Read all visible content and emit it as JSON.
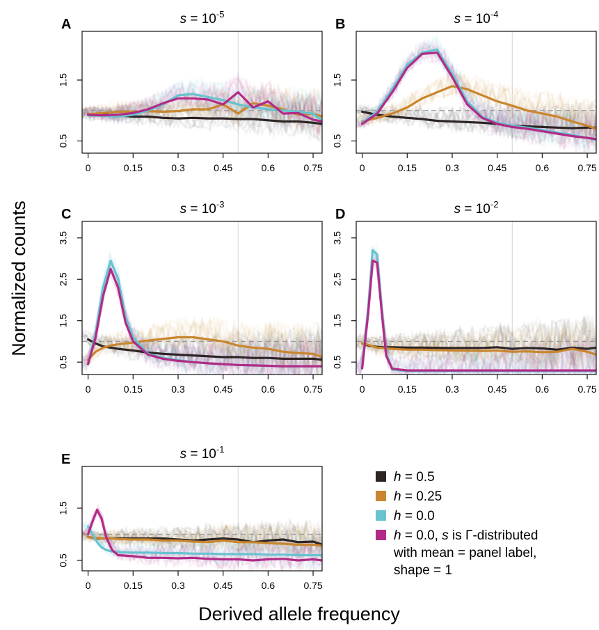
{
  "ylabel": "Normalized counts",
  "xlabel": "Derived allele frequency",
  "colors": {
    "h0.5": "#2d2424",
    "h0.25": "#c9862e",
    "h0.0": "#67c3cf",
    "gamma": "#b12b87"
  },
  "legend": {
    "items": [
      {
        "key": "h0.5",
        "lines": [
          "h = 0.5"
        ]
      },
      {
        "key": "h0.25",
        "lines": [
          "h = 0.25"
        ]
      },
      {
        "key": "h0.0",
        "lines": [
          "h = 0.0"
        ]
      },
      {
        "key": "gamma",
        "lines": [
          "h = 0.0, s is Γ-distributed",
          "with mean = panel label,",
          "shape = 1"
        ]
      }
    ]
  },
  "chart_data": [
    {
      "panel": "A",
      "type": "line",
      "title": "s = 10^-5",
      "xticks": [
        0,
        0.15,
        0.3,
        0.45,
        0.6,
        0.75
      ],
      "xtick_labels": [
        "0",
        "0.15",
        "0.3",
        "0.45",
        "0.6",
        "0.75"
      ],
      "yticks": [
        0.5,
        1.5
      ],
      "ytick_labels": [
        "0.5",
        "1.5"
      ],
      "xlim": [
        -0.02,
        0.78
      ],
      "ylim": [
        0.3,
        2.3
      ],
      "reference_y": 1.0,
      "x": [
        0,
        0.05,
        0.1,
        0.15,
        0.2,
        0.25,
        0.3,
        0.35,
        0.4,
        0.45,
        0.5,
        0.55,
        0.6,
        0.65,
        0.7,
        0.75,
        0.78
      ],
      "series": [
        {
          "key": "h0.5",
          "name": "h = 0.5",
          "values": [
            0.93,
            0.93,
            0.92,
            0.9,
            0.9,
            0.88,
            0.87,
            0.88,
            0.87,
            0.87,
            0.86,
            0.86,
            0.84,
            0.82,
            0.82,
            0.8,
            0.78
          ]
        },
        {
          "key": "h0.25",
          "name": "h = 0.25",
          "values": [
            0.94,
            0.96,
            0.98,
            0.98,
            0.99,
            0.98,
            0.99,
            1.02,
            1.02,
            1.1,
            0.95,
            1.12,
            1.08,
            1.02,
            0.93,
            0.95,
            0.9
          ]
        },
        {
          "key": "h0.0",
          "name": "h = 0.0",
          "values": [
            0.92,
            0.91,
            0.9,
            0.93,
            1.0,
            1.1,
            1.25,
            1.27,
            1.22,
            1.17,
            1.1,
            1.05,
            1.02,
            1.0,
            0.98,
            0.95,
            0.83
          ]
        },
        {
          "key": "gamma",
          "name": "h = 0.0, s is Γ-distributed",
          "values": [
            0.93,
            0.92,
            0.93,
            0.96,
            1.02,
            1.12,
            1.2,
            1.2,
            1.18,
            1.1,
            1.3,
            1.05,
            1.15,
            0.95,
            0.96,
            0.85,
            0.82
          ]
        }
      ]
    },
    {
      "panel": "B",
      "type": "line",
      "title": "s = 10^-4",
      "xticks": [
        0,
        0.15,
        0.3,
        0.45,
        0.6,
        0.75
      ],
      "xtick_labels": [
        "0",
        "0.15",
        "0.3",
        "0.45",
        "0.6",
        "0.75"
      ],
      "yticks": [
        0.5,
        1.5
      ],
      "ytick_labels": [
        "0.5",
        "1.5"
      ],
      "xlim": [
        -0.02,
        0.78
      ],
      "ylim": [
        0.3,
        2.3
      ],
      "reference_y": 1.0,
      "x": [
        0,
        0.05,
        0.1,
        0.15,
        0.2,
        0.25,
        0.3,
        0.35,
        0.4,
        0.45,
        0.5,
        0.55,
        0.6,
        0.65,
        0.7,
        0.75,
        0.78
      ],
      "series": [
        {
          "key": "h0.5",
          "name": "h = 0.5",
          "values": [
            0.98,
            0.93,
            0.9,
            0.88,
            0.86,
            0.83,
            0.82,
            0.81,
            0.8,
            0.78,
            0.75,
            0.74,
            0.73,
            0.72,
            0.71,
            0.72,
            0.72
          ]
        },
        {
          "key": "h0.25",
          "name": "h = 0.25",
          "values": [
            0.82,
            0.88,
            0.95,
            1.05,
            1.2,
            1.3,
            1.4,
            1.35,
            1.25,
            1.15,
            1.08,
            1.0,
            0.95,
            0.9,
            0.82,
            0.75,
            0.7
          ]
        },
        {
          "key": "h0.0",
          "name": "h = 0.0",
          "values": [
            0.8,
            0.98,
            1.35,
            1.75,
            1.95,
            2.0,
            1.6,
            1.15,
            0.9,
            0.8,
            0.75,
            0.72,
            0.68,
            0.64,
            0.6,
            0.55,
            0.52
          ]
        },
        {
          "key": "gamma",
          "name": "h = 0.0, s is Γ-distributed",
          "values": [
            0.78,
            0.95,
            1.3,
            1.7,
            1.93,
            1.95,
            1.55,
            1.1,
            0.88,
            0.78,
            0.73,
            0.7,
            0.66,
            0.62,
            0.58,
            0.55,
            0.53
          ]
        }
      ]
    },
    {
      "panel": "C",
      "type": "line",
      "title": "s = 10^-3",
      "xticks": [
        0,
        0.15,
        0.3,
        0.45,
        0.6,
        0.75
      ],
      "xtick_labels": [
        "0",
        "0.15",
        "0.3",
        "0.45",
        "0.6",
        "0.75"
      ],
      "yticks": [
        0.5,
        1.5,
        2.5,
        3.5
      ],
      "ytick_labels": [
        "0.5",
        "1.5",
        "2.5",
        "3.5"
      ],
      "xlim": [
        -0.02,
        0.78
      ],
      "ylim": [
        0.2,
        3.9
      ],
      "reference_y": 1.0,
      "x": [
        0,
        0.025,
        0.05,
        0.075,
        0.1,
        0.125,
        0.15,
        0.2,
        0.25,
        0.3,
        0.35,
        0.4,
        0.45,
        0.5,
        0.55,
        0.6,
        0.65,
        0.7,
        0.75,
        0.78
      ],
      "series": [
        {
          "key": "h0.5",
          "name": "h = 0.5",
          "values": [
            1.05,
            0.95,
            0.88,
            0.85,
            0.82,
            0.8,
            0.78,
            0.73,
            0.7,
            0.68,
            0.66,
            0.64,
            0.62,
            0.62,
            0.6,
            0.6,
            0.58,
            0.58,
            0.58,
            0.56
          ]
        },
        {
          "key": "h0.25",
          "name": "h = 0.25",
          "values": [
            0.55,
            0.75,
            0.85,
            0.9,
            0.93,
            0.95,
            0.97,
            1.02,
            1.06,
            1.1,
            1.1,
            1.05,
            1.0,
            0.9,
            0.85,
            0.82,
            0.75,
            0.72,
            0.7,
            0.62
          ]
        },
        {
          "key": "h0.0",
          "name": "h = 0.0",
          "values": [
            0.45,
            1.2,
            2.3,
            2.95,
            2.5,
            1.6,
            1.1,
            0.7,
            0.6,
            0.55,
            0.5,
            0.47,
            0.45,
            0.43,
            0.42,
            0.41,
            0.4,
            0.4,
            0.4,
            0.4
          ]
        },
        {
          "key": "gamma",
          "name": "h = 0.0, s is Γ-distributed",
          "values": [
            0.45,
            1.1,
            2.1,
            2.75,
            2.3,
            1.45,
            1.0,
            0.68,
            0.58,
            0.53,
            0.5,
            0.47,
            0.45,
            0.43,
            0.42,
            0.41,
            0.4,
            0.4,
            0.4,
            0.4
          ]
        }
      ]
    },
    {
      "panel": "D",
      "type": "line",
      "title": "s = 10^-2",
      "xticks": [
        0,
        0.15,
        0.3,
        0.45,
        0.6,
        0.75
      ],
      "xtick_labels": [
        "0",
        "0.15",
        "0.3",
        "0.45",
        "0.6",
        "0.75"
      ],
      "yticks": [
        0.5,
        1.5,
        2.5,
        3.5
      ],
      "ytick_labels": [
        "0.5",
        "1.5",
        "2.5",
        "3.5"
      ],
      "xlim": [
        -0.02,
        0.78
      ],
      "ylim": [
        0.2,
        3.9
      ],
      "reference_y": 1.0,
      "x": [
        0,
        0.02,
        0.035,
        0.05,
        0.065,
        0.08,
        0.1,
        0.15,
        0.2,
        0.3,
        0.4,
        0.45,
        0.5,
        0.55,
        0.6,
        0.65,
        0.7,
        0.75,
        0.78
      ],
      "series": [
        {
          "key": "h0.5",
          "name": "h = 0.5",
          "values": [
            0.95,
            0.9,
            0.88,
            0.87,
            0.86,
            0.86,
            0.86,
            0.85,
            0.85,
            0.84,
            0.84,
            0.86,
            0.82,
            0.84,
            0.83,
            0.8,
            0.85,
            0.82,
            0.85
          ]
        },
        {
          "key": "h0.25",
          "name": "h = 0.25",
          "values": [
            0.95,
            0.92,
            0.88,
            0.85,
            0.84,
            0.83,
            0.82,
            0.8,
            0.8,
            0.78,
            0.77,
            0.78,
            0.75,
            0.76,
            0.74,
            0.75,
            0.82,
            0.75,
            0.68
          ]
        },
        {
          "key": "h0.0",
          "name": "h = 0.0",
          "values": [
            0.35,
            1.8,
            3.2,
            3.1,
            1.8,
            0.7,
            0.32,
            0.28,
            0.28,
            0.28,
            0.28,
            0.28,
            0.28,
            0.28,
            0.28,
            0.28,
            0.28,
            0.28,
            0.28
          ]
        },
        {
          "key": "gamma",
          "name": "h = 0.0, s is Γ-distributed",
          "values": [
            0.35,
            1.7,
            2.95,
            2.9,
            1.7,
            0.65,
            0.34,
            0.3,
            0.3,
            0.3,
            0.3,
            0.3,
            0.3,
            0.3,
            0.3,
            0.3,
            0.3,
            0.3,
            0.3
          ]
        }
      ]
    },
    {
      "panel": "E",
      "type": "line",
      "title": "s = 10^-1",
      "xticks": [
        0,
        0.15,
        0.3,
        0.45,
        0.6,
        0.75
      ],
      "xtick_labels": [
        "0",
        "0.15",
        "0.3",
        "0.45",
        "0.6",
        "0.75"
      ],
      "yticks": [
        0.5,
        1.5
      ],
      "ytick_labels": [
        "0.5",
        "1.5"
      ],
      "xlim": [
        -0.02,
        0.78
      ],
      "ylim": [
        0.3,
        2.3
      ],
      "reference_y": 1.0,
      "x": [
        0,
        0.015,
        0.03,
        0.045,
        0.06,
        0.08,
        0.1,
        0.15,
        0.2,
        0.25,
        0.3,
        0.35,
        0.4,
        0.45,
        0.5,
        0.55,
        0.6,
        0.65,
        0.7,
        0.75,
        0.78
      ],
      "series": [
        {
          "key": "h0.5",
          "name": "h = 0.5",
          "values": [
            0.95,
            0.93,
            0.92,
            0.92,
            0.92,
            0.92,
            0.92,
            0.92,
            0.92,
            0.92,
            0.9,
            0.88,
            0.9,
            0.92,
            0.9,
            0.85,
            0.88,
            0.9,
            0.85,
            0.86,
            0.8
          ]
        },
        {
          "key": "h0.25",
          "name": "h = 0.25",
          "values": [
            0.95,
            0.93,
            0.93,
            0.92,
            0.92,
            0.92,
            0.91,
            0.9,
            0.9,
            0.88,
            0.88,
            0.86,
            0.85,
            0.88,
            0.85,
            0.85,
            0.83,
            0.82,
            0.8,
            0.8,
            0.78
          ]
        },
        {
          "key": "h0.0",
          "name": "h = 0.0",
          "values": [
            1.15,
            1.0,
            0.85,
            0.75,
            0.7,
            0.67,
            0.66,
            0.65,
            0.65,
            0.64,
            0.64,
            0.63,
            0.63,
            0.62,
            0.62,
            0.62,
            0.61,
            0.61,
            0.6,
            0.6,
            0.6
          ]
        },
        {
          "key": "gamma",
          "name": "h = 0.0, s is Γ-distributed",
          "values": [
            1.0,
            1.25,
            1.47,
            1.3,
            0.95,
            0.7,
            0.6,
            0.58,
            0.55,
            0.55,
            0.54,
            0.55,
            0.53,
            0.52,
            0.52,
            0.5,
            0.52,
            0.53,
            0.5,
            0.52,
            0.5
          ]
        }
      ]
    }
  ]
}
